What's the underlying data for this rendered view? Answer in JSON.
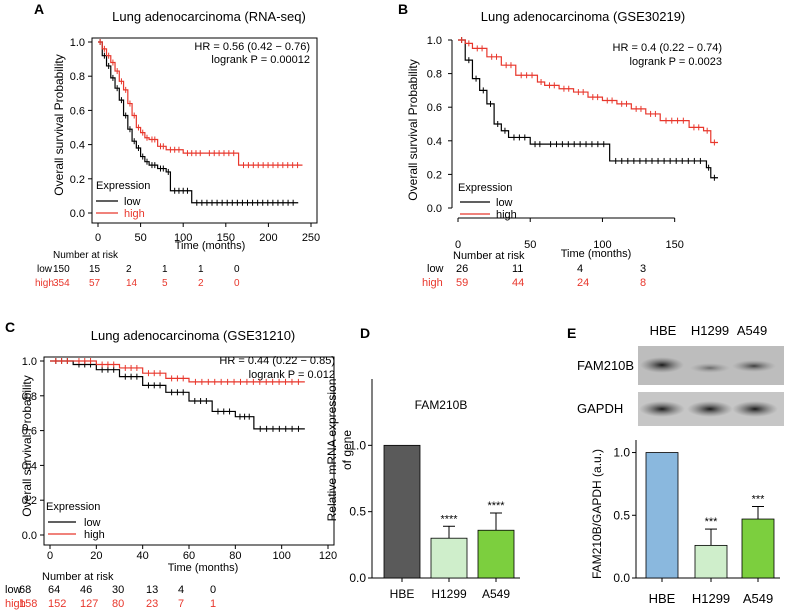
{
  "colors": {
    "low": "#000000",
    "high": "#e8372c",
    "bar_hbe_d": "#5a5a5a",
    "bar_h1299": "#cfeecb",
    "bar_a549": "#7ccf3e",
    "bar_hbe_e": "#8ab8de"
  },
  "panels": [
    {
      "letter": "A",
      "title": "Lung adenocarcinoma (RNA-seq)",
      "hr": "HR = 0.56 (0.42 − 0.76)",
      "logrank": "logrank P = 0.00012",
      "ylabel": "Overall survival Probability",
      "xlabel": "Time (months)",
      "legend_title": "Expression",
      "legend_low": "low",
      "legend_high": "high",
      "risk_title": "Number at risk",
      "risk_low_label": "low",
      "risk_high_label": "high",
      "risk_low": [
        "150",
        "15",
        "2",
        "1",
        "1",
        "0"
      ],
      "risk_high": [
        "354",
        "57",
        "14",
        "5",
        "2",
        "0"
      ]
    },
    {
      "letter": "B",
      "title": "Lung adenocarcinoma (GSE30219)",
      "hr": "HR = 0.4 (0.22 − 0.74)",
      "logrank": "logrank P = 0.0023",
      "ylabel": "Overall survival Probability",
      "xlabel": "Time (months)",
      "legend_title": "Expression",
      "legend_low": "low",
      "legend_high": "high",
      "risk_title": "Number at risk",
      "risk_low_label": "low",
      "risk_high_label": "high",
      "risk_low": [
        "26",
        "11",
        "4",
        "3"
      ],
      "risk_high": [
        "59",
        "44",
        "24",
        "8"
      ]
    },
    {
      "letter": "C",
      "title": "Lung adenocarcinoma (GSE31210)",
      "hr": "HR = 0.44 (0.22 − 0.85)",
      "logrank": "logrank P = 0.012",
      "ylabel": "Overall survival Probability",
      "xlabel": "Time (months)",
      "legend_title": "Expression",
      "legend_low": "low",
      "legend_high": "high",
      "risk_title": "Number at risk",
      "risk_low_label": "low",
      "risk_high_label": "high",
      "risk_low": [
        "68",
        "64",
        "46",
        "30",
        "13",
        "4",
        "0"
      ],
      "risk_high": [
        "158",
        "152",
        "127",
        "80",
        "23",
        "7",
        "1"
      ]
    },
    {
      "letter": "D",
      "title": "FAM210B",
      "ylabel": "Relative mRNA expression of gene"
    },
    {
      "letter": "E",
      "blot_labels": [
        "HBE",
        "H1299",
        "A549"
      ],
      "blot_row1": "FAM210B",
      "blot_row2": "GAPDH",
      "ylabel": "FAM210B/GAPDH (a.u.)"
    }
  ],
  "chart_data": [
    {
      "type": "line",
      "name": "Kaplan-Meier A",
      "xlim": [
        0,
        250
      ],
      "xticks": [
        0,
        50,
        100,
        150,
        200,
        250
      ],
      "ylim": [
        0,
        1
      ],
      "yticks": [
        0,
        0.2,
        0.4,
        0.6,
        0.8,
        1.0
      ],
      "series": [
        {
          "name": "low",
          "x": [
            0,
            5,
            10,
            15,
            20,
            25,
            30,
            35,
            40,
            45,
            50,
            55,
            60,
            70,
            80,
            85,
            110,
            235
          ],
          "y": [
            1.0,
            0.92,
            0.86,
            0.79,
            0.73,
            0.66,
            0.57,
            0.49,
            0.42,
            0.38,
            0.33,
            0.3,
            0.28,
            0.26,
            0.24,
            0.13,
            0.06,
            0.06
          ]
        },
        {
          "name": "high",
          "x": [
            0,
            5,
            10,
            15,
            20,
            25,
            30,
            35,
            40,
            45,
            50,
            55,
            60,
            70,
            80,
            100,
            125,
            165,
            240
          ],
          "y": [
            1.0,
            0.96,
            0.92,
            0.88,
            0.83,
            0.77,
            0.72,
            0.64,
            0.57,
            0.5,
            0.47,
            0.44,
            0.43,
            0.39,
            0.37,
            0.35,
            0.35,
            0.28,
            0.28
          ]
        }
      ]
    },
    {
      "type": "line",
      "name": "Kaplan-Meier B",
      "xlim": [
        0,
        180
      ],
      "xticks": [
        0,
        50,
        100,
        150
      ],
      "ylim": [
        0,
        1
      ],
      "yticks": [
        0,
        0.2,
        0.4,
        0.6,
        0.8,
        1.0
      ],
      "series": [
        {
          "name": "low",
          "x": [
            0,
            5,
            10,
            15,
            20,
            25,
            30,
            35,
            50,
            60,
            105,
            172,
            175,
            180
          ],
          "y": [
            1.0,
            0.88,
            0.77,
            0.7,
            0.62,
            0.5,
            0.46,
            0.42,
            0.38,
            0.38,
            0.28,
            0.24,
            0.18,
            0.18
          ]
        },
        {
          "name": "high",
          "x": [
            0,
            5,
            10,
            20,
            30,
            40,
            55,
            60,
            70,
            80,
            90,
            100,
            110,
            120,
            130,
            140,
            160,
            170,
            175,
            180
          ],
          "y": [
            1.0,
            0.98,
            0.95,
            0.9,
            0.85,
            0.79,
            0.75,
            0.73,
            0.71,
            0.69,
            0.66,
            0.64,
            0.62,
            0.59,
            0.56,
            0.52,
            0.48,
            0.46,
            0.39,
            0.39
          ]
        }
      ]
    },
    {
      "type": "line",
      "name": "Kaplan-Meier C",
      "xlim": [
        0,
        120
      ],
      "xticks": [
        0,
        20,
        40,
        60,
        80,
        100,
        120
      ],
      "ylim": [
        0,
        1
      ],
      "yticks": [
        0,
        0.2,
        0.4,
        0.6,
        0.8,
        1.0
      ],
      "series": [
        {
          "name": "low",
          "x": [
            0,
            10,
            20,
            30,
            40,
            50,
            60,
            70,
            80,
            88,
            110
          ],
          "y": [
            1.0,
            0.98,
            0.95,
            0.91,
            0.86,
            0.82,
            0.77,
            0.71,
            0.68,
            0.61,
            0.61
          ]
        },
        {
          "name": "high",
          "x": [
            0,
            10,
            20,
            30,
            40,
            50,
            60,
            110
          ],
          "y": [
            1.0,
            1.0,
            0.98,
            0.96,
            0.93,
            0.9,
            0.88,
            0.88
          ]
        }
      ]
    },
    {
      "type": "bar",
      "name": "Bar D",
      "categories": [
        "HBE",
        "H1299",
        "A549"
      ],
      "values": [
        1.0,
        0.3,
        0.36
      ],
      "errors": [
        0,
        0.09,
        0.13
      ],
      "significance": [
        "",
        "****",
        "****"
      ],
      "ylim": [
        0,
        1.5
      ],
      "yticks": [
        0.0,
        0.5,
        1.0
      ]
    },
    {
      "type": "bar",
      "name": "Bar E",
      "categories": [
        "HBE",
        "H1299",
        "A549"
      ],
      "values": [
        1.0,
        0.26,
        0.47
      ],
      "errors": [
        0,
        0.13,
        0.1
      ],
      "significance": [
        "",
        "***",
        "***"
      ],
      "ylim": [
        0,
        1.1
      ],
      "yticks": [
        0.0,
        0.5,
        1.0
      ]
    }
  ]
}
